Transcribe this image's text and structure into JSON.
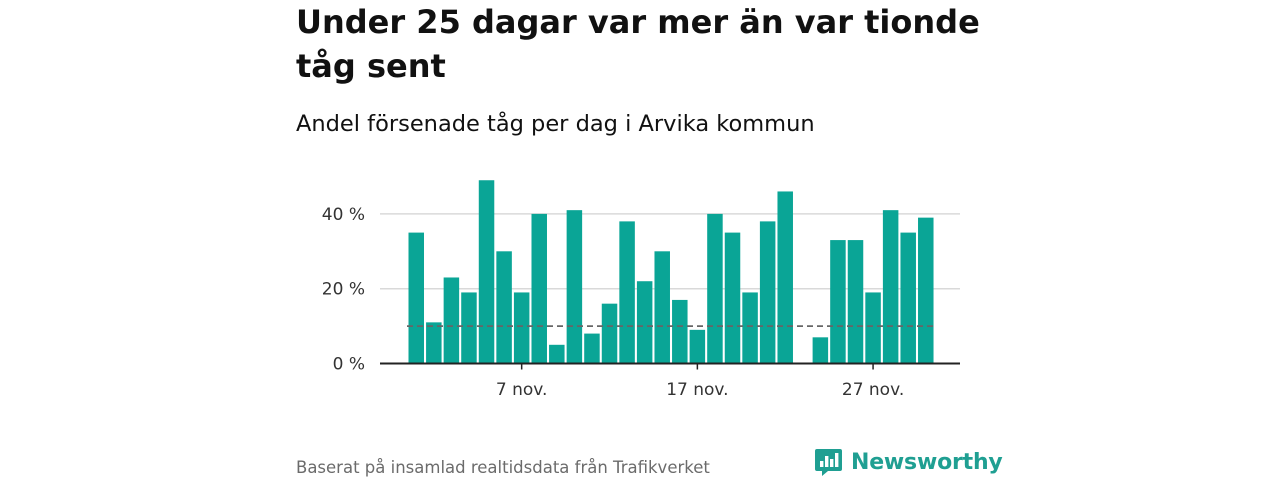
{
  "title": "Under 25 dagar var mer än var tionde tåg sent",
  "subtitle": "Andel försenade tåg per dag i Arvika kommun",
  "source": "Baserat på insamlad realtidsdata från Trafikverket",
  "brand": {
    "name": "Newsworthy",
    "logo_icon": "bar-chart-speech-bubble-icon",
    "color": "#1f9f92"
  },
  "colors": {
    "bar": "#0aa596",
    "grid": "#d9d9d9",
    "axis": "#222222",
    "reference_line": "#666666"
  },
  "chart_data": {
    "type": "bar",
    "title": "Andel försenade tåg per dag i Arvika kommun",
    "xlabel": "",
    "ylabel": "",
    "unit": "%",
    "categories": [
      "1 nov.",
      "2 nov.",
      "3 nov.",
      "4 nov.",
      "5 nov.",
      "6 nov.",
      "7 nov.",
      "8 nov.",
      "9 nov.",
      "10 nov.",
      "11 nov.",
      "12 nov.",
      "13 nov.",
      "14 nov.",
      "15 nov.",
      "16 nov.",
      "17 nov.",
      "18 nov.",
      "19 nov.",
      "20 nov.",
      "21 nov.",
      "22 nov.",
      "23 nov.",
      "24 nov.",
      "25 nov.",
      "26 nov.",
      "27 nov.",
      "28 nov.",
      "29 nov.",
      "30 nov."
    ],
    "values": [
      35,
      11,
      23,
      19,
      49,
      30,
      19,
      40,
      5,
      41,
      8,
      16,
      38,
      22,
      30,
      17,
      9,
      40,
      35,
      19,
      38,
      46,
      null,
      7,
      33,
      33,
      19,
      41,
      35,
      39
    ],
    "reference_line": 10,
    "ylim": [
      0,
      50
    ],
    "yticks": [
      0,
      20,
      40
    ],
    "ytick_labels": [
      "0 %",
      "20 %",
      "40 %"
    ],
    "xticks": [
      "7 nov.",
      "17 nov.",
      "27 nov."
    ],
    "grid": true,
    "legend": "none"
  }
}
